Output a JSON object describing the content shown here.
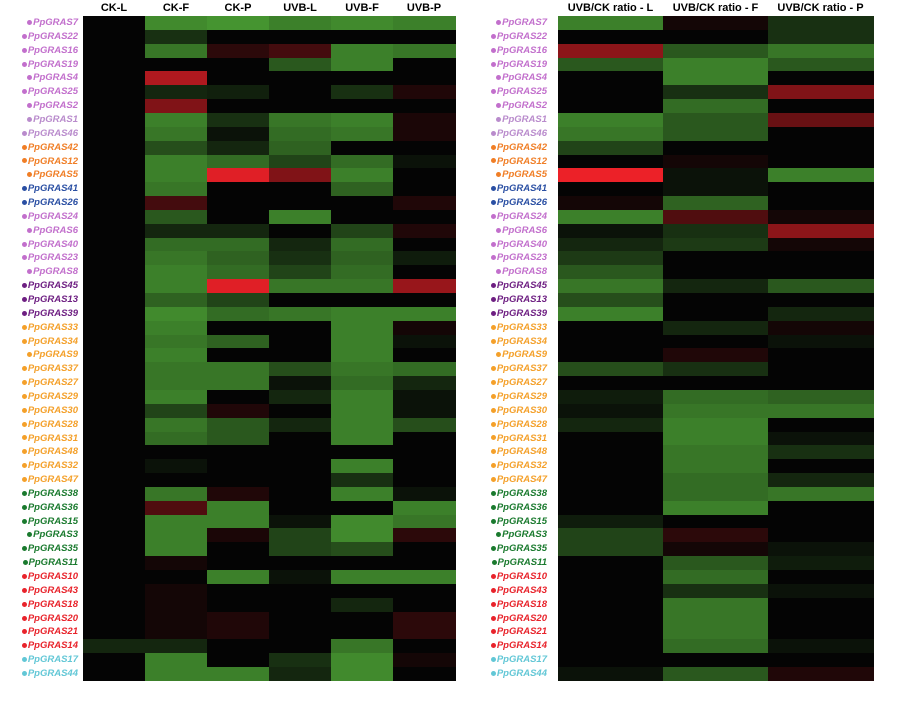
{
  "colors": {
    "pink": "#c26fcc",
    "lilac": "#b98bcc",
    "orange": "#f07e26",
    "blue": "#2a4fa3",
    "purple": "#6e1f82",
    "gold": "#f4a02a",
    "darkgreen": "#1a7a2e",
    "red": "#e8232b",
    "cyan": "#62c7d6"
  },
  "chart_data": [
    {
      "type": "heatmap",
      "name_key": "expression",
      "columns": [
        "CK-L",
        "CK-F",
        "CK-P",
        "UVB-L",
        "UVB-F",
        "UVB-P"
      ],
      "rows": [
        {
          "label": "PpGRAS7",
          "color": "pink",
          "values": [
            0,
            0.65,
            0.7,
            0.6,
            0.65,
            0.6
          ]
        },
        {
          "label": "PpGRAS22",
          "color": "pink",
          "values": [
            0,
            0.2,
            0,
            0,
            0,
            0
          ]
        },
        {
          "label": "PpGRAS16",
          "color": "pink",
          "values": [
            0,
            0.55,
            -0.15,
            -0.25,
            0.6,
            0.55
          ]
        },
        {
          "label": "PpGRAS19",
          "color": "pink",
          "values": [
            0,
            0,
            0,
            0.4,
            0.6,
            0
          ]
        },
        {
          "label": "PpGRAS4",
          "color": "pink",
          "values": [
            0,
            -0.7,
            0,
            0,
            0,
            0
          ]
        },
        {
          "label": "PpGRAS25",
          "color": "pink",
          "values": [
            0,
            0.15,
            0.12,
            0,
            0.2,
            -0.1
          ]
        },
        {
          "label": "PpGRAS2",
          "color": "pink",
          "values": [
            0,
            -0.5,
            0,
            0,
            0,
            0
          ]
        },
        {
          "label": "PpGRAS1",
          "color": "lilac",
          "values": [
            0,
            0.6,
            0.2,
            0.55,
            0.6,
            -0.08
          ]
        },
        {
          "label": "PpGRAS46",
          "color": "lilac",
          "values": [
            0,
            0.55,
            0.05,
            0.5,
            0.55,
            -0.08
          ]
        },
        {
          "label": "PpGRAS42",
          "color": "orange",
          "values": [
            0,
            0.35,
            0.15,
            0.45,
            0,
            0
          ]
        },
        {
          "label": "PpGRAS12",
          "color": "orange",
          "values": [
            0,
            0.6,
            0.5,
            0.3,
            0.5,
            0.05
          ]
        },
        {
          "label": "PpGRAS5",
          "color": "orange",
          "values": [
            0,
            0.6,
            -0.9,
            -0.5,
            0.6,
            0
          ]
        },
        {
          "label": "PpGRAS41",
          "color": "blue",
          "values": [
            0,
            0.55,
            0,
            0,
            0.45,
            0
          ]
        },
        {
          "label": "PpGRAS26",
          "color": "blue",
          "values": [
            0,
            -0.25,
            0,
            0,
            0,
            -0.1
          ]
        },
        {
          "label": "PpGRAS24",
          "color": "pink",
          "values": [
            0,
            0.4,
            0,
            0.6,
            0,
            0
          ]
        },
        {
          "label": "PpGRAS6",
          "color": "pink",
          "values": [
            0,
            0.15,
            0.15,
            0,
            0.3,
            -0.1
          ]
        },
        {
          "label": "PpGRAS40",
          "color": "pink",
          "values": [
            0,
            0.5,
            0.5,
            0.15,
            0.5,
            0
          ]
        },
        {
          "label": "PpGRAS23",
          "color": "pink",
          "values": [
            0,
            0.55,
            0.45,
            0.2,
            0.45,
            0.1
          ]
        },
        {
          "label": "PpGRAS8",
          "color": "pink",
          "values": [
            0,
            0.6,
            0.5,
            0.3,
            0.5,
            0
          ]
        },
        {
          "label": "PpGRAS45",
          "color": "purple",
          "values": [
            0,
            0.6,
            -0.9,
            0.55,
            0.55,
            -0.6
          ]
        },
        {
          "label": "PpGRAS13",
          "color": "purple",
          "values": [
            0,
            0.45,
            0.3,
            0,
            0,
            0
          ]
        },
        {
          "label": "PpGRAS39",
          "color": "purple",
          "values": [
            0,
            0.65,
            0.5,
            0.55,
            0.6,
            0.6
          ]
        },
        {
          "label": "PpGRAS33",
          "color": "gold",
          "values": [
            0,
            0.6,
            0,
            0,
            0.6,
            -0.05
          ]
        },
        {
          "label": "PpGRAS34",
          "color": "gold",
          "values": [
            0,
            0.55,
            0.45,
            0,
            0.6,
            0.05
          ]
        },
        {
          "label": "PpGRAS9",
          "color": "gold",
          "values": [
            0,
            0.6,
            0,
            0,
            0.6,
            0
          ]
        },
        {
          "label": "PpGRAS37",
          "color": "gold",
          "values": [
            0,
            0.55,
            0.55,
            0.35,
            0.55,
            0.5
          ]
        },
        {
          "label": "PpGRAS27",
          "color": "gold",
          "values": [
            0,
            0.55,
            0.55,
            0.05,
            0.5,
            0.15
          ]
        },
        {
          "label": "PpGRAS29",
          "color": "gold",
          "values": [
            0,
            0.6,
            0,
            0.15,
            0.6,
            0.05
          ]
        },
        {
          "label": "PpGRAS30",
          "color": "gold",
          "values": [
            0,
            0.3,
            -0.1,
            0,
            0.6,
            0.05
          ]
        },
        {
          "label": "PpGRAS28",
          "color": "gold",
          "values": [
            0,
            0.55,
            0.4,
            0.15,
            0.6,
            0.35
          ]
        },
        {
          "label": "PpGRAS31",
          "color": "gold",
          "values": [
            0,
            0.5,
            0.4,
            0,
            0.6,
            0
          ]
        },
        {
          "label": "PpGRAS48",
          "color": "gold",
          "values": [
            0,
            0,
            0,
            0,
            0,
            0
          ]
        },
        {
          "label": "PpGRAS32",
          "color": "gold",
          "values": [
            0,
            0.05,
            0,
            0,
            0.6,
            0
          ]
        },
        {
          "label": "PpGRAS47",
          "color": "gold",
          "values": [
            0,
            0,
            0,
            0,
            0.2,
            0
          ]
        },
        {
          "label": "PpGRAS38",
          "color": "darkgreen",
          "values": [
            0,
            0.55,
            -0.1,
            0,
            0.6,
            0.05
          ]
        },
        {
          "label": "PpGRAS36",
          "color": "darkgreen",
          "values": [
            0,
            -0.3,
            0.6,
            0,
            0,
            0.6
          ]
        },
        {
          "label": "PpGRAS15",
          "color": "darkgreen",
          "values": [
            0,
            0.6,
            0.6,
            0.05,
            0.65,
            0.55
          ]
        },
        {
          "label": "PpGRAS3",
          "color": "darkgreen",
          "values": [
            0,
            0.6,
            -0.08,
            0.3,
            0.65,
            -0.15
          ]
        },
        {
          "label": "PpGRAS35",
          "color": "darkgreen",
          "values": [
            0,
            0.6,
            0,
            0.3,
            0.35,
            0
          ]
        },
        {
          "label": "PpGRAS11",
          "color": "darkgreen",
          "values": [
            0,
            -0.05,
            0,
            0,
            0,
            0
          ]
        },
        {
          "label": "PpGRAS10",
          "color": "red",
          "values": [
            0,
            0,
            0.6,
            0.05,
            0.6,
            0.6
          ]
        },
        {
          "label": "PpGRAS43",
          "color": "red",
          "values": [
            0,
            -0.05,
            0,
            0,
            0,
            0
          ]
        },
        {
          "label": "PpGRAS18",
          "color": "red",
          "values": [
            0,
            -0.05,
            0,
            0,
            0.15,
            0
          ]
        },
        {
          "label": "PpGRAS20",
          "color": "red",
          "values": [
            0,
            -0.05,
            -0.1,
            0,
            0,
            -0.15
          ]
        },
        {
          "label": "PpGRAS21",
          "color": "red",
          "values": [
            0,
            -0.05,
            -0.1,
            0,
            0,
            -0.15
          ]
        },
        {
          "label": "PpGRAS14",
          "color": "red",
          "values": [
            0.15,
            0.15,
            0,
            0,
            0.55,
            0
          ]
        },
        {
          "label": "PpGRAS17",
          "color": "cyan",
          "values": [
            0,
            0.6,
            0,
            0.2,
            0.65,
            -0.05
          ]
        },
        {
          "label": "PpGRAS44",
          "color": "cyan",
          "values": [
            0,
            0.6,
            0.6,
            0.15,
            0.65,
            0
          ]
        }
      ]
    },
    {
      "type": "heatmap",
      "name_key": "ratio",
      "columns": [
        "UVB/CK ratio - L",
        "UVB/CK ratio - F",
        "UVB/CK ratio - P"
      ],
      "rows": [
        {
          "label": "PpGRAS7",
          "color": "pink",
          "values": [
            0.6,
            -0.05,
            0.2
          ]
        },
        {
          "label": "PpGRAS22",
          "color": "pink",
          "values": [
            0,
            0,
            0.2
          ]
        },
        {
          "label": "PpGRAS16",
          "color": "pink",
          "values": [
            -0.55,
            0.4,
            0.55
          ]
        },
        {
          "label": "PpGRAS19",
          "color": "pink",
          "values": [
            0.4,
            0.6,
            0.4
          ]
        },
        {
          "label": "PpGRAS4",
          "color": "pink",
          "values": [
            0,
            0.6,
            0
          ]
        },
        {
          "label": "PpGRAS25",
          "color": "pink",
          "values": [
            0,
            0.2,
            -0.5
          ]
        },
        {
          "label": "PpGRAS2",
          "color": "pink",
          "values": [
            0,
            0.5,
            0
          ]
        },
        {
          "label": "PpGRAS1",
          "color": "lilac",
          "values": [
            0.6,
            0.4,
            -0.4
          ]
        },
        {
          "label": "PpGRAS46",
          "color": "lilac",
          "values": [
            0.55,
            0.4,
            0
          ]
        },
        {
          "label": "PpGRAS42",
          "color": "orange",
          "values": [
            0.3,
            0,
            0
          ]
        },
        {
          "label": "PpGRAS12",
          "color": "orange",
          "values": [
            0,
            -0.05,
            0
          ]
        },
        {
          "label": "PpGRAS5",
          "color": "orange",
          "values": [
            -0.95,
            0.05,
            0.6
          ]
        },
        {
          "label": "PpGRAS41",
          "color": "blue",
          "values": [
            0,
            0.05,
            0
          ]
        },
        {
          "label": "PpGRAS26",
          "color": "blue",
          "values": [
            -0.05,
            0.45,
            0
          ]
        },
        {
          "label": "PpGRAS24",
          "color": "pink",
          "values": [
            0.6,
            -0.3,
            -0.05
          ]
        },
        {
          "label": "PpGRAS6",
          "color": "pink",
          "values": [
            0.05,
            0.2,
            -0.55
          ]
        },
        {
          "label": "PpGRAS40",
          "color": "pink",
          "values": [
            0.15,
            0.25,
            -0.05
          ]
        },
        {
          "label": "PpGRAS23",
          "color": "pink",
          "values": [
            0.25,
            0,
            0
          ]
        },
        {
          "label": "PpGRAS8",
          "color": "pink",
          "values": [
            0.4,
            0,
            0
          ]
        },
        {
          "label": "PpGRAS45",
          "color": "purple",
          "values": [
            0.55,
            0.15,
            0.4
          ]
        },
        {
          "label": "PpGRAS13",
          "color": "purple",
          "values": [
            0.35,
            0,
            0
          ]
        },
        {
          "label": "PpGRAS39",
          "color": "purple",
          "values": [
            0.6,
            0,
            0.15
          ]
        },
        {
          "label": "PpGRAS33",
          "color": "gold",
          "values": [
            0,
            0.15,
            -0.05
          ]
        },
        {
          "label": "PpGRAS34",
          "color": "gold",
          "values": [
            0,
            0,
            0.05
          ]
        },
        {
          "label": "PpGRAS9",
          "color": "gold",
          "values": [
            0,
            -0.1,
            0
          ]
        },
        {
          "label": "PpGRAS37",
          "color": "gold",
          "values": [
            0.35,
            0.2,
            0
          ]
        },
        {
          "label": "PpGRAS27",
          "color": "gold",
          "values": [
            0,
            0,
            0
          ]
        },
        {
          "label": "PpGRAS29",
          "color": "gold",
          "values": [
            0.1,
            0.5,
            0.45
          ]
        },
        {
          "label": "PpGRAS30",
          "color": "gold",
          "values": [
            0.05,
            0.55,
            0.55
          ]
        },
        {
          "label": "PpGRAS28",
          "color": "gold",
          "values": [
            0.15,
            0.6,
            0
          ]
        },
        {
          "label": "PpGRAS31",
          "color": "gold",
          "values": [
            0,
            0.6,
            0.05
          ]
        },
        {
          "label": "PpGRAS48",
          "color": "gold",
          "values": [
            0,
            0.55,
            0.2
          ]
        },
        {
          "label": "PpGRAS32",
          "color": "gold",
          "values": [
            0,
            0.55,
            0
          ]
        },
        {
          "label": "PpGRAS47",
          "color": "gold",
          "values": [
            0,
            0.5,
            0.15
          ]
        },
        {
          "label": "PpGRAS38",
          "color": "darkgreen",
          "values": [
            0,
            0.5,
            0.55
          ]
        },
        {
          "label": "PpGRAS36",
          "color": "darkgreen",
          "values": [
            0,
            0.6,
            0
          ]
        },
        {
          "label": "PpGRAS15",
          "color": "darkgreen",
          "values": [
            0.1,
            0,
            0
          ]
        },
        {
          "label": "PpGRAS3",
          "color": "darkgreen",
          "values": [
            0.3,
            -0.15,
            0
          ]
        },
        {
          "label": "PpGRAS35",
          "color": "darkgreen",
          "values": [
            0.3,
            -0.05,
            0.05
          ]
        },
        {
          "label": "PpGRAS11",
          "color": "darkgreen",
          "values": [
            0,
            0.4,
            0.1
          ]
        },
        {
          "label": "PpGRAS10",
          "color": "red",
          "values": [
            0,
            0.5,
            0
          ]
        },
        {
          "label": "PpGRAS43",
          "color": "red",
          "values": [
            0,
            0.2,
            0.05
          ]
        },
        {
          "label": "PpGRAS18",
          "color": "red",
          "values": [
            0,
            0.55,
            0
          ]
        },
        {
          "label": "PpGRAS20",
          "color": "red",
          "values": [
            0,
            0.55,
            0
          ]
        },
        {
          "label": "PpGRAS21",
          "color": "red",
          "values": [
            0,
            0.55,
            0
          ]
        },
        {
          "label": "PpGRAS14",
          "color": "red",
          "values": [
            0,
            0.5,
            0.05
          ]
        },
        {
          "label": "PpGRAS17",
          "color": "cyan",
          "values": [
            0,
            0,
            0
          ]
        },
        {
          "label": "PpGRAS44",
          "color": "cyan",
          "values": [
            0.05,
            0.4,
            -0.1
          ]
        }
      ]
    }
  ]
}
